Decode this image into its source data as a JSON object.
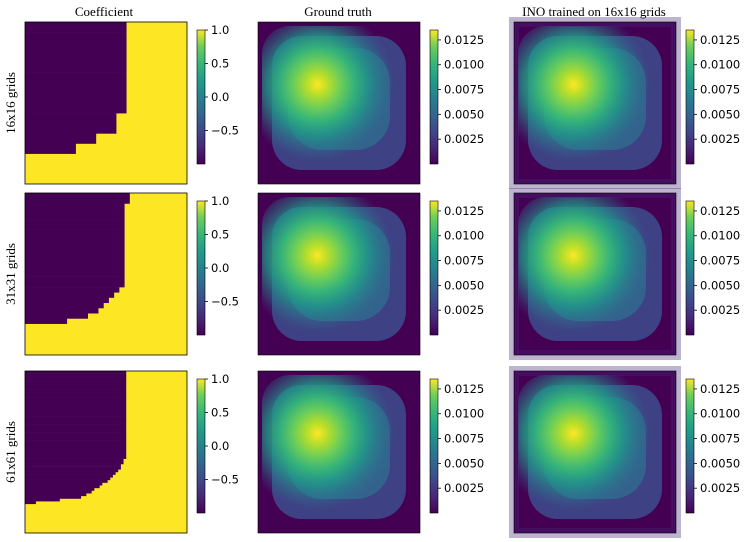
{
  "chart_data": {
    "type": "heatmap",
    "columns": [
      {
        "title": "Coefficient"
      },
      {
        "title": "Ground truth"
      },
      {
        "title": "INO trained on 16x16 grids"
      }
    ],
    "rows": [
      {
        "label": "16x16 grids",
        "grid": 16
      },
      {
        "label": "31x31 grids",
        "grid": 31
      },
      {
        "label": "61x61 grids",
        "grid": 61
      }
    ],
    "colormap": "viridis",
    "colorbars": {
      "coefficient": {
        "ticks": [
          "1.0",
          "0.5",
          "0.0",
          "−0.5"
        ],
        "tick_values": [
          1.0,
          0.5,
          0.0,
          -0.5
        ],
        "range": [
          -1.0,
          1.0
        ]
      },
      "solution": {
        "ticks": [
          "0.0125",
          "0.0100",
          "0.0075",
          "0.0050",
          "0.0025"
        ],
        "tick_values": [
          0.0125,
          0.01,
          0.0075,
          0.005,
          0.0025
        ],
        "range": [
          0.0,
          0.0135
        ]
      }
    },
    "coefficient_values": {
      "inside_region": -1.0,
      "outside_region": 1.0
    },
    "solution_peak": {
      "value": 0.0127,
      "location": "upper-left"
    },
    "colors": {
      "viridis_low": "#440154",
      "viridis_mid": "#21918c",
      "viridis_high": "#fde725"
    }
  }
}
